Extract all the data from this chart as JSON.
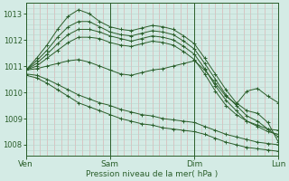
{
  "bg_color": "#d4ebe5",
  "grid_color_v": "#dba8a8",
  "grid_color_h": "#b8d4cc",
  "line_color": "#2a5e2a",
  "marker_color": "#2a5e2a",
  "xlabel_label": "Pression niveau de la mer( hPa )",
  "xtick_labels": [
    "Ven",
    "Sam",
    "Dim",
    "Lun"
  ],
  "xtick_positions": [
    0,
    0.333,
    0.667,
    1.0
  ],
  "ylim": [
    1007.6,
    1013.4
  ],
  "xlim": [
    0.0,
    1.0
  ],
  "yticks": [
    1008,
    1009,
    1010,
    1011,
    1012,
    1013
  ],
  "n_vgrid": 37,
  "n_hgrid": 30,
  "series": [
    [
      0.0,
      1010.85,
      0.042,
      1011.3,
      0.083,
      1011.8,
      0.125,
      1012.4,
      0.167,
      1012.9,
      0.208,
      1013.15,
      0.25,
      1013.0,
      0.292,
      1012.7,
      0.333,
      1012.5,
      0.375,
      1012.4,
      0.417,
      1012.35,
      0.458,
      1012.45,
      0.5,
      1012.55,
      0.542,
      1012.5,
      0.583,
      1012.4,
      0.625,
      1012.15,
      0.667,
      1011.85,
      0.708,
      1011.3,
      0.75,
      1010.7,
      0.792,
      1010.1,
      0.833,
      1009.6,
      0.875,
      1009.3,
      0.917,
      1009.2,
      0.958,
      1008.85,
      1.0,
      1008.1
    ],
    [
      0.0,
      1010.85,
      0.042,
      1011.2,
      0.083,
      1011.6,
      0.125,
      1012.1,
      0.167,
      1012.5,
      0.208,
      1012.7,
      0.25,
      1012.7,
      0.292,
      1012.5,
      0.333,
      1012.3,
      0.375,
      1012.2,
      0.417,
      1012.15,
      0.458,
      1012.25,
      0.5,
      1012.35,
      0.542,
      1012.3,
      0.583,
      1012.2,
      0.625,
      1011.95,
      0.667,
      1011.65,
      0.708,
      1011.1,
      0.75,
      1010.5,
      0.792,
      1009.9,
      0.833,
      1009.5,
      0.875,
      1009.1,
      0.917,
      1008.9,
      0.958,
      1008.6,
      1.0,
      1008.3
    ],
    [
      0.0,
      1010.85,
      0.042,
      1011.1,
      0.083,
      1011.45,
      0.125,
      1011.85,
      0.167,
      1012.2,
      0.208,
      1012.4,
      0.25,
      1012.4,
      0.292,
      1012.3,
      0.333,
      1012.15,
      0.375,
      1012.05,
      0.417,
      1011.95,
      0.458,
      1012.05,
      0.5,
      1012.15,
      0.542,
      1012.1,
      0.583,
      1012.0,
      0.625,
      1011.75,
      0.667,
      1011.45,
      0.708,
      1010.9,
      0.75,
      1010.25,
      0.792,
      1009.7,
      0.833,
      1009.3,
      0.875,
      1008.9,
      0.917,
      1008.7,
      0.958,
      1008.5,
      1.0,
      1008.4
    ],
    [
      0.0,
      1010.85,
      0.042,
      1011.0,
      0.083,
      1011.3,
      0.125,
      1011.6,
      0.167,
      1011.9,
      0.208,
      1012.1,
      0.25,
      1012.1,
      0.292,
      1012.05,
      0.333,
      1011.9,
      0.375,
      1011.8,
      0.417,
      1011.75,
      0.458,
      1011.85,
      0.5,
      1011.95,
      0.542,
      1011.9,
      0.583,
      1011.8,
      0.625,
      1011.55,
      0.667,
      1011.25,
      0.708,
      1010.7,
      0.75,
      1010.05,
      0.792,
      1009.5,
      0.833,
      1009.15,
      0.875,
      1008.9,
      0.917,
      1008.75,
      0.958,
      1008.6,
      1.0,
      1008.55
    ],
    [
      0.0,
      1010.85,
      0.042,
      1010.9,
      0.083,
      1011.0,
      0.125,
      1011.1,
      0.167,
      1011.2,
      0.208,
      1011.25,
      0.25,
      1011.15,
      0.292,
      1011.0,
      0.333,
      1010.85,
      0.375,
      1010.7,
      0.417,
      1010.65,
      0.458,
      1010.75,
      0.5,
      1010.85,
      0.542,
      1010.9,
      0.583,
      1011.0,
      0.625,
      1011.1,
      0.667,
      1011.2,
      0.708,
      1010.85,
      0.75,
      1010.35,
      0.792,
      1009.85,
      0.833,
      1009.55,
      0.875,
      1010.05,
      0.917,
      1010.15,
      0.958,
      1009.85,
      1.0,
      1009.6
    ],
    [
      0.0,
      1010.7,
      0.042,
      1010.65,
      0.083,
      1010.5,
      0.125,
      1010.3,
      0.167,
      1010.1,
      0.208,
      1009.9,
      0.25,
      1009.75,
      0.292,
      1009.6,
      0.333,
      1009.5,
      0.375,
      1009.35,
      0.417,
      1009.25,
      0.458,
      1009.15,
      0.5,
      1009.1,
      0.542,
      1009.0,
      0.583,
      1008.95,
      0.625,
      1008.9,
      0.667,
      1008.85,
      0.708,
      1008.7,
      0.75,
      1008.55,
      0.792,
      1008.4,
      0.833,
      1008.3,
      0.875,
      1008.2,
      0.917,
      1008.1,
      0.958,
      1008.05,
      1.0,
      1008.0
    ],
    [
      0.0,
      1010.65,
      0.042,
      1010.55,
      0.083,
      1010.35,
      0.125,
      1010.1,
      0.167,
      1009.85,
      0.208,
      1009.6,
      0.25,
      1009.45,
      0.292,
      1009.3,
      0.333,
      1009.15,
      0.375,
      1009.0,
      0.417,
      1008.9,
      0.458,
      1008.8,
      0.5,
      1008.75,
      0.542,
      1008.65,
      0.583,
      1008.6,
      0.625,
      1008.55,
      0.667,
      1008.5,
      0.708,
      1008.4,
      0.75,
      1008.25,
      0.792,
      1008.1,
      0.833,
      1008.0,
      0.875,
      1007.9,
      0.917,
      1007.85,
      0.958,
      1007.8,
      1.0,
      1007.75
    ]
  ]
}
